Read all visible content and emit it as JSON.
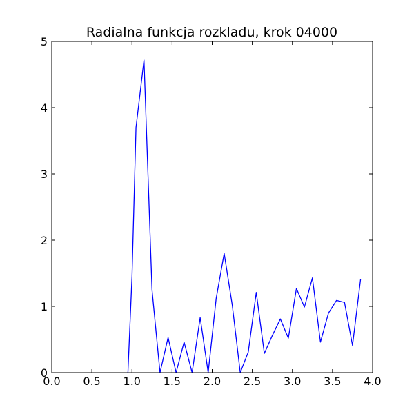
{
  "chart_data": {
    "type": "line",
    "title": "Radialna funkcja rozkladu, krok 04000",
    "xlabel": "",
    "ylabel": "",
    "xlim": [
      0.0,
      4.0
    ],
    "ylim": [
      0,
      5
    ],
    "x_ticks": [
      "0.0",
      "0.5",
      "1.0",
      "1.5",
      "2.0",
      "2.5",
      "3.0",
      "3.5",
      "4.0"
    ],
    "y_ticks": [
      "0",
      "1",
      "2",
      "3",
      "4",
      "5"
    ],
    "grid": false,
    "line_color": "#0000ff",
    "series": [
      {
        "x": [
          0.95,
          1.0,
          1.05,
          1.15,
          1.25,
          1.35,
          1.45,
          1.55,
          1.65,
          1.75,
          1.85,
          1.95,
          2.05,
          2.15,
          2.25,
          2.35,
          2.45,
          2.55,
          2.65,
          2.75,
          2.85,
          2.95,
          3.05,
          3.15,
          3.25,
          3.35,
          3.45,
          3.55,
          3.65,
          3.75,
          3.85
        ],
        "y": [
          0,
          1.45,
          3.7,
          4.72,
          1.25,
          0,
          0.53,
          0,
          0.46,
          0,
          0.83,
          0,
          1.12,
          1.8,
          1.02,
          0,
          0.31,
          1.21,
          0.29,
          0.56,
          0.81,
          0.52,
          1.27,
          0.99,
          1.43,
          0.46,
          0.9,
          1.09,
          1.06,
          0.41,
          1.41
        ]
      }
    ]
  }
}
